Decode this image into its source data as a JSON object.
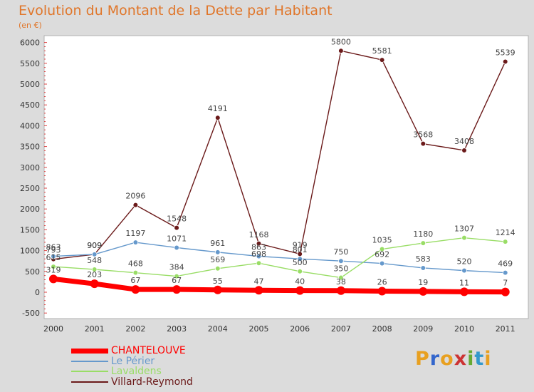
{
  "chart_data": {
    "type": "line",
    "title": "Evolution du Montant de la Dette par Habitant",
    "subtitle": "(en €)",
    "categories": [
      "2000",
      "2001",
      "2002",
      "2003",
      "2004",
      "2005",
      "2006",
      "2007",
      "2008",
      "2009",
      "2010",
      "2011"
    ],
    "ylim": [
      -500,
      6000
    ],
    "yticks": [
      -500,
      0,
      500,
      1000,
      1500,
      2000,
      2500,
      3000,
      3500,
      4000,
      4500,
      5000,
      5500,
      6000
    ],
    "grid": false,
    "legend_position": "bottom-left",
    "series": [
      {
        "name": "CHANTELOUVE",
        "color": "#ff0000",
        "values": [
          319,
          203,
          67,
          67,
          55,
          47,
          40,
          38,
          26,
          19,
          11,
          7
        ]
      },
      {
        "name": "Le Périer",
        "color": "#6699cc",
        "values": [
          863,
          909,
          1197,
          1071,
          961,
          863,
          801,
          750,
          692,
          583,
          520,
          469
        ]
      },
      {
        "name": "Lavaldens",
        "color": "#99dd66",
        "values": [
          615,
          548,
          468,
          384,
          569,
          698,
          500,
          350,
          1035,
          1180,
          1307,
          1214
        ]
      },
      {
        "name": "Villard-Reymond",
        "color": "#6b1a1a",
        "values": [
          793,
          909,
          2096,
          1548,
          4191,
          1168,
          919,
          5800,
          5581,
          3568,
          3408,
          5539
        ]
      }
    ]
  },
  "logo": {
    "letters": [
      "P",
      "r",
      "o",
      "x",
      "i",
      "t",
      "i"
    ],
    "colors": [
      "#e8a020",
      "#3366cc",
      "#e8a020",
      "#cc3333",
      "#66aa33",
      "#3399cc",
      "#e8a020"
    ]
  }
}
